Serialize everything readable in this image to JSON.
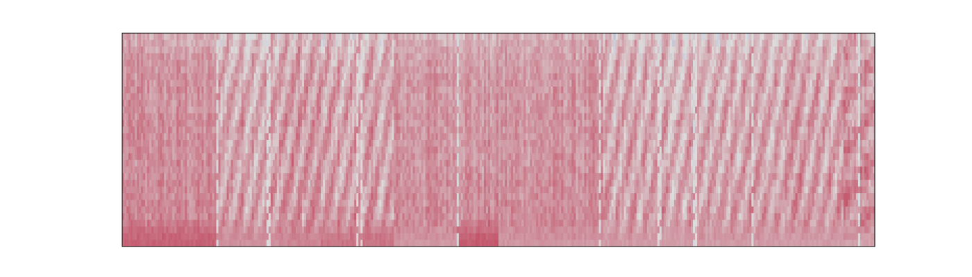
{
  "chart_data": {
    "type": "heatmap",
    "title": "",
    "xlabel": "",
    "ylabel": "",
    "axes_ticks_visible": false,
    "grid": false,
    "legend": "none",
    "colorbar": false,
    "colormap": "coolwarm",
    "value_range": [
      0,
      1
    ],
    "n_rows": 32,
    "n_cols": 360,
    "row_profile": [
      0.6,
      0.62,
      0.63,
      0.64,
      0.65,
      0.65,
      0.66,
      0.66,
      0.66,
      0.66,
      0.66,
      0.66,
      0.67,
      0.67,
      0.67,
      0.67,
      0.67,
      0.67,
      0.67,
      0.67,
      0.67,
      0.68,
      0.68,
      0.68,
      0.68,
      0.68,
      0.69,
      0.69,
      0.7,
      0.71,
      0.73,
      0.75
    ],
    "column_segments": [
      {
        "x_range": [
          0,
          45
        ],
        "mean": 0.67,
        "texture": "noisy",
        "bottom_intensity": 0.78
      },
      {
        "x_range": [
          45,
          75
        ],
        "mean": 0.62,
        "texture": "diagonal-streaks",
        "bottom_intensity": 0.68
      },
      {
        "x_range": [
          75,
          95
        ],
        "mean": 0.64,
        "texture": "diagonal-streaks",
        "bottom_intensity": 0.7
      },
      {
        "x_range": [
          95,
          130
        ],
        "mean": 0.62,
        "texture": "diagonal-streaks",
        "bottom_intensity": 0.74
      },
      {
        "x_range": [
          130,
          160
        ],
        "mean": 0.66,
        "texture": "noisy",
        "bottom_intensity": 0.66
      },
      {
        "x_range": [
          160,
          180
        ],
        "mean": 0.66,
        "texture": "noisy",
        "bottom_intensity": 0.8
      },
      {
        "x_range": [
          180,
          230
        ],
        "mean": 0.66,
        "texture": "noisy",
        "bottom_intensity": 0.66
      },
      {
        "x_range": [
          230,
          300
        ],
        "mean": 0.61,
        "texture": "diagonal-streaks",
        "bottom_intensity": 0.65
      },
      {
        "x_range": [
          300,
          345
        ],
        "mean": 0.62,
        "texture": "diagonal-streaks",
        "bottom_intensity": 0.65
      },
      {
        "x_range": [
          345,
          360
        ],
        "mean": 0.66,
        "texture": "blocky",
        "bottom_intensity": 0.64
      }
    ],
    "low_value_columns": [
      45,
      69,
      70,
      112,
      114,
      160,
      228,
      256,
      257,
      273,
      274,
      301,
      352
    ]
  },
  "colors": {
    "frame": "#000000",
    "background": "#ffffff",
    "cool_end": "#3b4cc0",
    "mid": "#dddddd",
    "warm_end": "#b40426"
  }
}
